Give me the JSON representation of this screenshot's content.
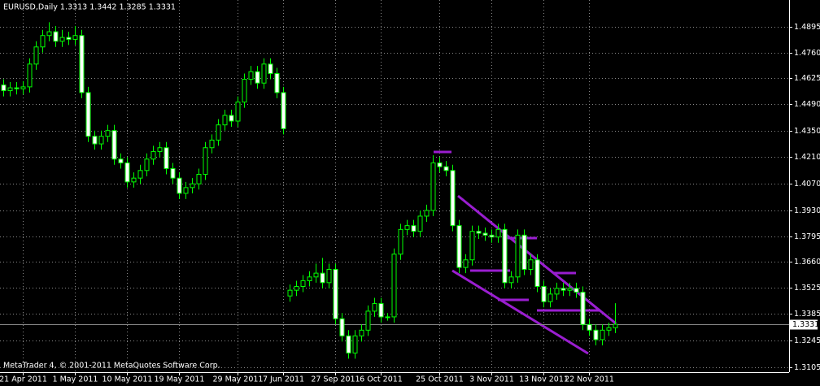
{
  "chart_data": {
    "type": "candlestick",
    "title": "EURUSD,Daily  1.3313 1.3442 1.3285 1.3331",
    "footer": "MetaTrader 4, © 2001-2011 MetaQuotes Software Corp.",
    "last_price": 1.3331,
    "ylim": [
      1.3079,
      1.5037
    ],
    "yticks": [
      1.4895,
      {
        "value": 1.476,
        "label": "1.4760"
      },
      1.4625,
      {
        "value": 1.449,
        "label": "1.4490"
      },
      {
        "value": 1.435,
        "label": "1.4350"
      },
      {
        "value": 1.421,
        "label": "1.4210"
      },
      {
        "value": 1.407,
        "label": "1.4070"
      },
      {
        "value": 1.393,
        "label": "1.3930"
      },
      1.3795,
      {
        "value": 1.366,
        "label": "1.3660"
      },
      1.3525,
      1.3385,
      1.3245,
      1.3105
    ],
    "grid": true,
    "up_color": "#00ff00",
    "down_color": "#ffffff",
    "categories": [
      null,
      null,
      null,
      "21 Apr 2011",
      null,
      null,
      null,
      null,
      null,
      null,
      null,
      "1 May 2011",
      null,
      null,
      null,
      null,
      null,
      null,
      null,
      "10 May 2011",
      null,
      null,
      null,
      null,
      null,
      null,
      null,
      "19 May 2011",
      null,
      null,
      null,
      null,
      null,
      null,
      null,
      null,
      "29 May 2011",
      null,
      null,
      null,
      null,
      null,
      null,
      "7 Jun 2011",
      null,
      null,
      null,
      null,
      null,
      null,
      null,
      "27 Sep 2011",
      null,
      null,
      null,
      null,
      null,
      null,
      "6 Oct 2011",
      null,
      null,
      null,
      null,
      null,
      null,
      null,
      null,
      "25 Oct 2011",
      null,
      null,
      null,
      null,
      null,
      null,
      null,
      "3 Nov 2011",
      null,
      null,
      null,
      null,
      null,
      null,
      null,
      "13 Nov 2011",
      null,
      null,
      null,
      null,
      null,
      null,
      "22 Nov 2011",
      null,
      null,
      null,
      null
    ],
    "open": [
      1.459,
      1.456,
      1.4575,
      1.457,
      1.458,
      1.47,
      1.479,
      1.485,
      1.487,
      1.482,
      1.484,
      1.483,
      1.485,
      1.455,
      1.432,
      1.428,
      1.432,
      1.435,
      1.42,
      1.418,
      1.408,
      1.41,
      1.414,
      1.42,
      1.424,
      1.426,
      1.415,
      1.41,
      1.402,
      1.405,
      1.407,
      1.412,
      1.426,
      1.43,
      1.438,
      1.443,
      1.44,
      1.45,
      1.462,
      1.466,
      1.46,
      1.47,
      1.465,
      1.455,
      1.348,
      1.351,
      1.353,
      1.356,
      1.358,
      1.36,
      1.355,
      1.362,
      1.336,
      1.327,
      1.318,
      1.327,
      1.33,
      1.34,
      1.344,
      1.337,
      1.337,
      1.37,
      1.383,
      1.385,
      1.382,
      1.39,
      1.393,
      1.418,
      1.416,
      1.414,
      1.385,
      1.363,
      1.367,
      1.382,
      1.381,
      1.38,
      1.379,
      1.383,
      1.355,
      1.358,
      1.38,
      1.362,
      1.367,
      1.353,
      1.345,
      1.349,
      1.352,
      1.351,
      1.352,
      1.35,
      1.333,
      1.33,
      1.325,
      1.33,
      1.3313
    ],
    "high": [
      1.462,
      1.4605,
      1.4605,
      1.461,
      1.473,
      1.482,
      1.488,
      1.492,
      1.49,
      1.488,
      1.487,
      1.49,
      1.488,
      1.458,
      1.435,
      1.435,
      1.438,
      1.438,
      1.423,
      1.421,
      1.413,
      1.417,
      1.423,
      1.427,
      1.429,
      1.429,
      1.418,
      1.413,
      1.408,
      1.41,
      1.415,
      1.429,
      1.433,
      1.441,
      1.446,
      1.446,
      1.453,
      1.465,
      1.469,
      1.469,
      1.473,
      1.473,
      1.468,
      1.458,
      1.354,
      1.356,
      1.359,
      1.361,
      1.365,
      1.368,
      1.365,
      1.365,
      1.339,
      1.33,
      1.33,
      1.333,
      1.343,
      1.347,
      1.347,
      1.339,
      1.373,
      1.386,
      1.388,
      1.388,
      1.393,
      1.396,
      1.422,
      1.421,
      1.419,
      1.417,
      1.388,
      1.37,
      1.385,
      1.385,
      1.384,
      1.383,
      1.386,
      1.386,
      1.361,
      1.383,
      1.383,
      1.37,
      1.37,
      1.356,
      1.352,
      1.355,
      1.355,
      1.355,
      1.355,
      1.353,
      1.336,
      1.333,
      1.333,
      1.334,
      1.3442
    ],
    "low": [
      1.453,
      1.453,
      1.454,
      1.454,
      1.455,
      1.467,
      1.476,
      1.482,
      1.479,
      1.479,
      1.48,
      1.48,
      1.452,
      1.429,
      1.425,
      1.425,
      1.429,
      1.417,
      1.415,
      1.405,
      1.405,
      1.407,
      1.411,
      1.417,
      1.421,
      1.412,
      1.407,
      1.399,
      1.399,
      1.402,
      1.404,
      1.409,
      1.423,
      1.427,
      1.435,
      1.437,
      1.437,
      1.447,
      1.459,
      1.457,
      1.457,
      1.462,
      1.452,
      1.433,
      1.345,
      1.348,
      1.35,
      1.353,
      1.355,
      1.352,
      1.352,
      1.333,
      1.324,
      1.315,
      1.315,
      1.324,
      1.327,
      1.337,
      1.334,
      1.335,
      1.334,
      1.367,
      1.38,
      1.379,
      1.379,
      1.387,
      1.39,
      1.413,
      1.411,
      1.382,
      1.36,
      1.36,
      1.364,
      1.378,
      1.377,
      1.376,
      1.376,
      1.352,
      1.352,
      1.355,
      1.359,
      1.359,
      1.35,
      1.342,
      1.342,
      1.346,
      1.348,
      1.348,
      1.347,
      1.33,
      1.327,
      1.322,
      1.322,
      1.327,
      1.3285
    ],
    "close": [
      1.456,
      1.4575,
      1.457,
      1.458,
      1.47,
      1.479,
      1.485,
      1.487,
      1.482,
      1.484,
      1.483,
      1.485,
      1.455,
      1.432,
      1.428,
      1.432,
      1.435,
      1.42,
      1.418,
      1.408,
      1.41,
      1.414,
      1.42,
      1.424,
      1.426,
      1.415,
      1.41,
      1.402,
      1.405,
      1.407,
      1.412,
      1.426,
      1.43,
      1.438,
      1.443,
      1.44,
      1.45,
      1.462,
      1.466,
      1.46,
      1.47,
      1.465,
      1.455,
      1.436,
      1.351,
      1.353,
      1.356,
      1.358,
      1.36,
      1.355,
      1.362,
      1.336,
      1.327,
      1.318,
      1.327,
      1.33,
      1.34,
      1.344,
      1.337,
      1.337,
      1.37,
      1.383,
      1.385,
      1.382,
      1.39,
      1.393,
      1.418,
      1.416,
      1.414,
      1.385,
      1.363,
      1.367,
      1.382,
      1.381,
      1.38,
      1.379,
      1.383,
      1.355,
      1.358,
      1.38,
      1.362,
      1.367,
      1.353,
      1.345,
      1.349,
      1.352,
      1.351,
      1.352,
      1.35,
      1.333,
      1.33,
      1.325,
      1.33,
      1.3313,
      1.3331
    ]
  }
}
